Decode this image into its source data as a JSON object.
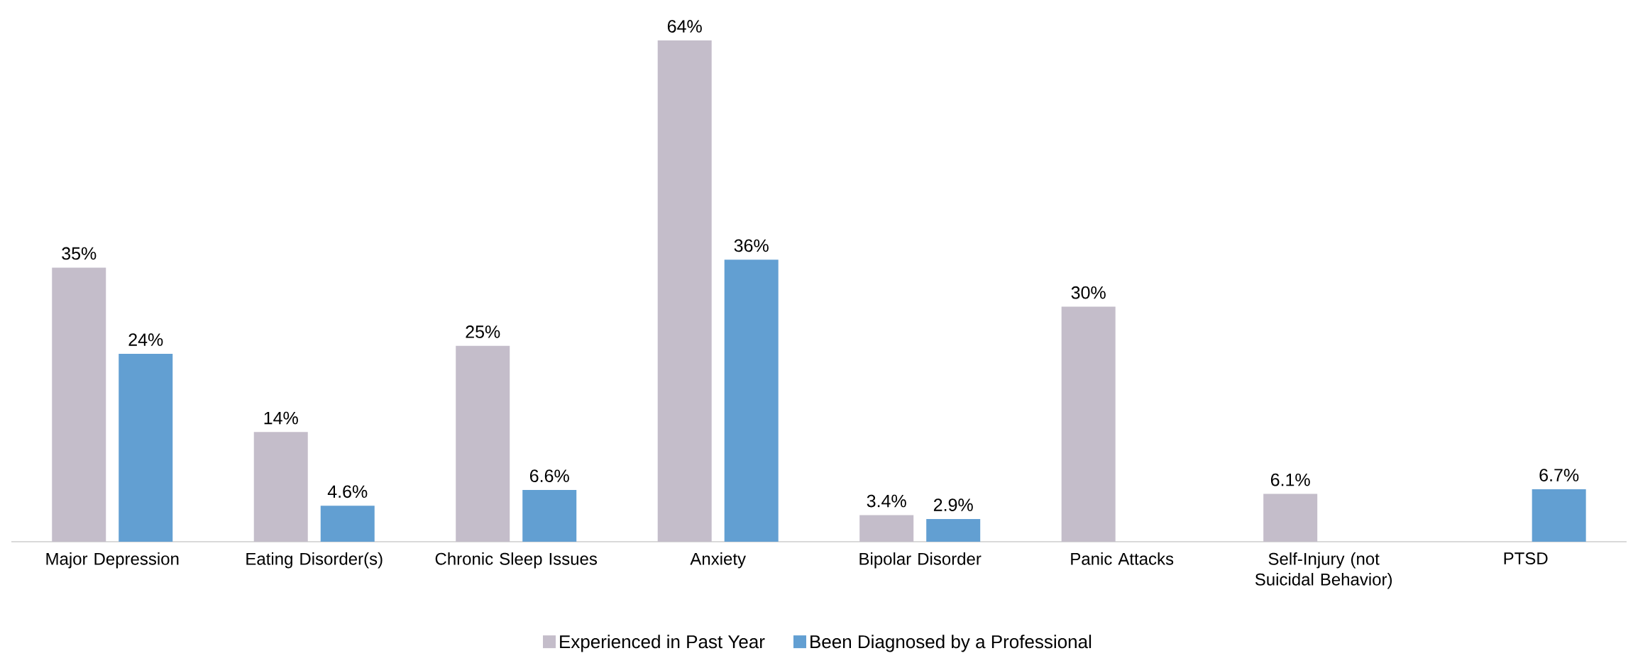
{
  "chart_data": {
    "type": "bar",
    "categories": [
      "Major Depression",
      "Eating Disorder(s)",
      "Chronic Sleep Issues",
      "Anxiety",
      "Bipolar Disorder",
      "Panic Attacks",
      "Self-Injury (not Suicidal Behavior)",
      "PTSD"
    ],
    "series": [
      {
        "name": "Experienced in Past Year",
        "color": "#c4bdca",
        "values": [
          35,
          14,
          25,
          64,
          3.4,
          30,
          6.1,
          null
        ],
        "value_labels": [
          "35%",
          "14%",
          "25%",
          "64%",
          "3.4%",
          "30%",
          "6.1%",
          null
        ]
      },
      {
        "name": "Been Diagnosed by a Professional",
        "color": "#629fd2",
        "values": [
          24,
          4.6,
          6.6,
          36,
          2.9,
          null,
          null,
          6.7
        ],
        "value_labels": [
          "24%",
          "4.6%",
          "6.6%",
          "36%",
          "2.9%",
          null,
          null,
          "6.7%"
        ]
      }
    ],
    "legend": "bottom"
  }
}
